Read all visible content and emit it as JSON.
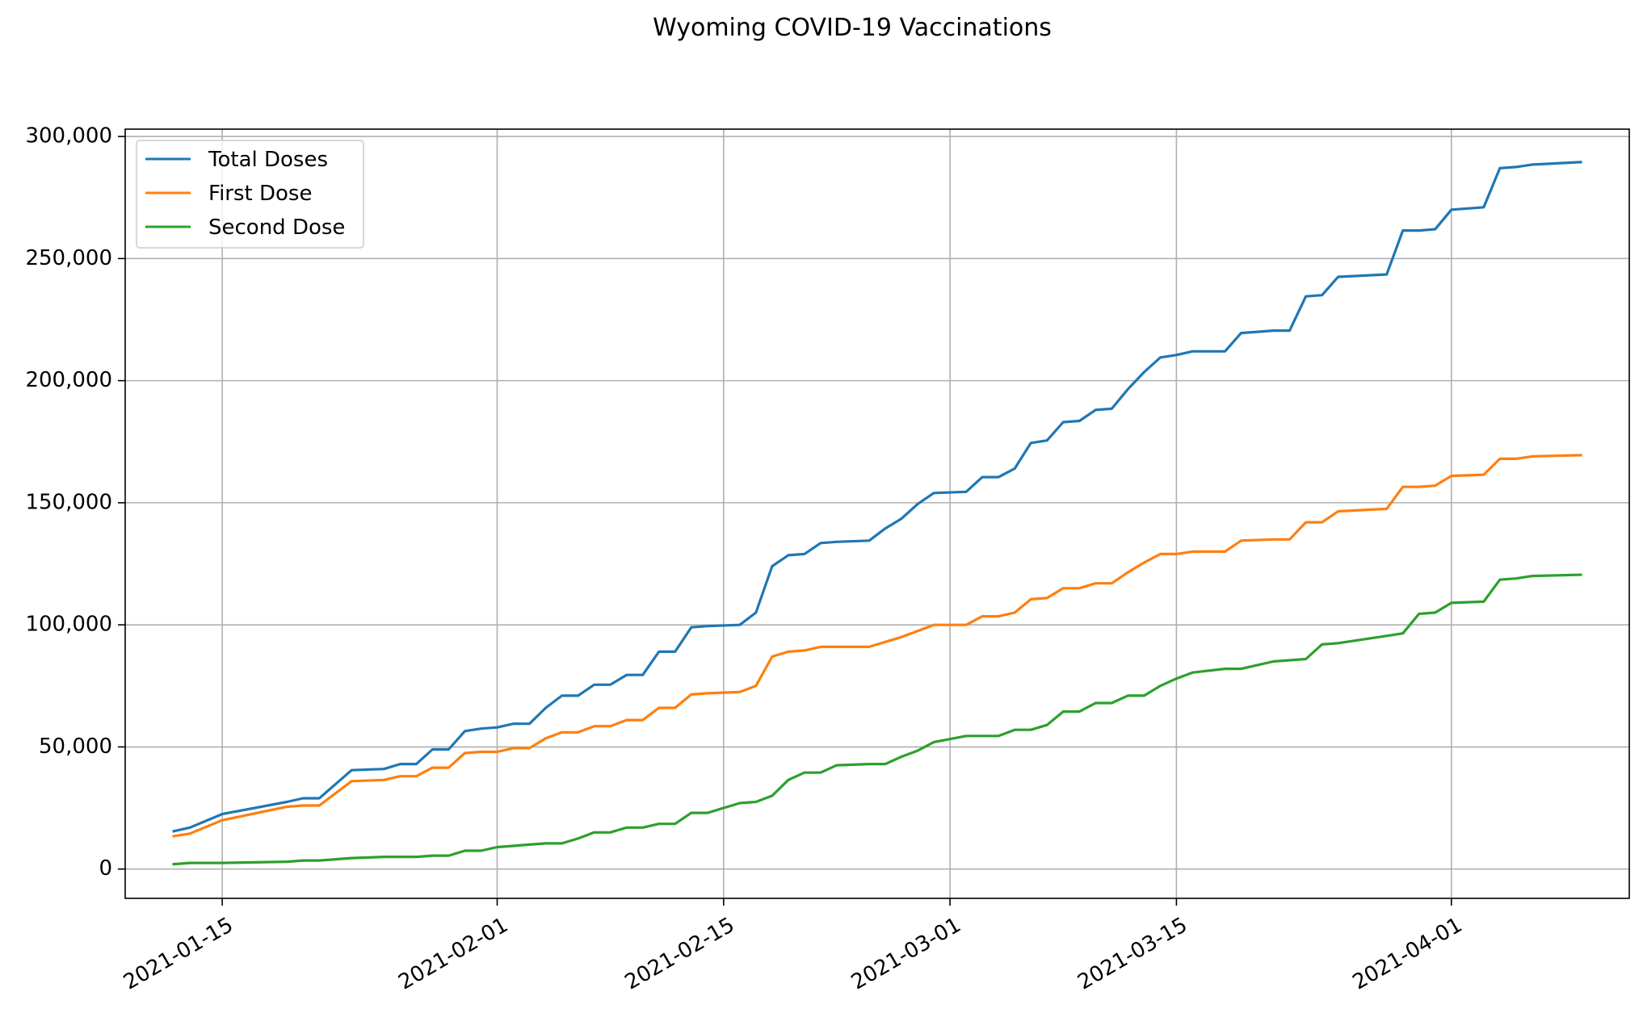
{
  "chart_data": {
    "type": "line",
    "title": "Wyoming COVID-19 Vaccinations",
    "xlabel": "",
    "ylabel": "",
    "grid": true,
    "legend_position": "top-left",
    "xlim": [
      "2021-01-09",
      "2021-04-12"
    ],
    "ylim": [
      -12000,
      303000
    ],
    "x_ticks": [
      "2021-01-15",
      "2021-02-01",
      "2021-02-15",
      "2021-03-01",
      "2021-03-15",
      "2021-04-01"
    ],
    "y_ticks": [
      0,
      50000,
      100000,
      150000,
      200000,
      250000,
      300000
    ],
    "y_tick_labels": [
      "0",
      "50,000",
      "100,000",
      "150,000",
      "200,000",
      "250,000",
      "300,000"
    ],
    "x": [
      "2021-01-12",
      "2021-01-13",
      "2021-01-15",
      "2021-01-19",
      "2021-01-20",
      "2021-01-21",
      "2021-01-23",
      "2021-01-25",
      "2021-01-26",
      "2021-01-27",
      "2021-01-28",
      "2021-01-29",
      "2021-01-30",
      "2021-01-31",
      "2021-02-01",
      "2021-02-02",
      "2021-02-03",
      "2021-02-04",
      "2021-02-05",
      "2021-02-06",
      "2021-02-07",
      "2021-02-08",
      "2021-02-09",
      "2021-02-10",
      "2021-02-11",
      "2021-02-12",
      "2021-02-13",
      "2021-02-14",
      "2021-02-16",
      "2021-02-17",
      "2021-02-18",
      "2021-02-19",
      "2021-02-20",
      "2021-02-21",
      "2021-02-22",
      "2021-02-24",
      "2021-02-25",
      "2021-02-26",
      "2021-02-27",
      "2021-02-28",
      "2021-03-02",
      "2021-03-03",
      "2021-03-04",
      "2021-03-05",
      "2021-03-06",
      "2021-03-07",
      "2021-03-08",
      "2021-03-09",
      "2021-03-10",
      "2021-03-11",
      "2021-03-12",
      "2021-03-13",
      "2021-03-14",
      "2021-03-15",
      "2021-03-16",
      "2021-03-18",
      "2021-03-19",
      "2021-03-21",
      "2021-03-22",
      "2021-03-23",
      "2021-03-24",
      "2021-03-25",
      "2021-03-28",
      "2021-03-29",
      "2021-03-30",
      "2021-03-31",
      "2021-04-01",
      "2021-04-03",
      "2021-04-04",
      "2021-04-05",
      "2021-04-06",
      "2021-04-09"
    ],
    "series": [
      {
        "name": "Total Doses",
        "color": "#1f77b4",
        "values": [
          15500,
          17000,
          22500,
          27500,
          29000,
          29000,
          40500,
          41000,
          43000,
          43000,
          49000,
          49000,
          56500,
          57500,
          58000,
          59500,
          59500,
          66000,
          71000,
          71000,
          75500,
          75500,
          79500,
          79500,
          89000,
          89000,
          99000,
          99500,
          100000,
          105000,
          124000,
          128500,
          129000,
          133500,
          134000,
          134500,
          139500,
          143500,
          149500,
          154000,
          154500,
          160500,
          160500,
          164000,
          174500,
          175500,
          183000,
          183500,
          188000,
          188500,
          196500,
          203500,
          209500,
          210500,
          212000,
          212000,
          219500,
          220500,
          220500,
          234500,
          235000,
          242500,
          243500,
          261500,
          261500,
          262000,
          270000,
          271000,
          287000,
          287500,
          288500,
          289500
        ]
      },
      {
        "name": "First Dose",
        "color": "#ff7f0e",
        "values": [
          13500,
          14500,
          20000,
          25500,
          26000,
          26000,
          36000,
          36500,
          38000,
          38000,
          41500,
          41500,
          47500,
          48000,
          48000,
          49500,
          49500,
          53500,
          56000,
          56000,
          58500,
          58500,
          61000,
          61000,
          66000,
          66000,
          71500,
          72000,
          72500,
          75000,
          87000,
          89000,
          89500,
          91000,
          91000,
          91000,
          93000,
          95000,
          97500,
          100000,
          100000,
          103500,
          103500,
          105000,
          110500,
          111000,
          115000,
          115000,
          117000,
          117000,
          121500,
          125500,
          129000,
          129000,
          130000,
          130000,
          134500,
          135000,
          135000,
          142000,
          142000,
          146500,
          147500,
          156500,
          156500,
          157000,
          161000,
          161500,
          168000,
          168000,
          169000,
          169500
        ]
      },
      {
        "name": "Second Dose",
        "color": "#2ca02c",
        "values": [
          2000,
          2500,
          2500,
          3000,
          3500,
          3500,
          4500,
          5000,
          5000,
          5000,
          5500,
          5500,
          7500,
          7500,
          9000,
          9500,
          10000,
          10500,
          10500,
          12500,
          15000,
          15000,
          17000,
          17000,
          18500,
          18500,
          23000,
          23000,
          27000,
          27500,
          30000,
          36500,
          39500,
          39500,
          42500,
          43000,
          43000,
          46000,
          48500,
          52000,
          54500,
          54500,
          54500,
          57000,
          57000,
          59000,
          64500,
          64500,
          68000,
          68000,
          71000,
          71000,
          75000,
          78000,
          80500,
          82000,
          82000,
          85000,
          85500,
          86000,
          92000,
          92500,
          95500,
          96500,
          104500,
          105000,
          109000,
          109500,
          118500,
          119000,
          120000,
          120500
        ]
      }
    ]
  }
}
